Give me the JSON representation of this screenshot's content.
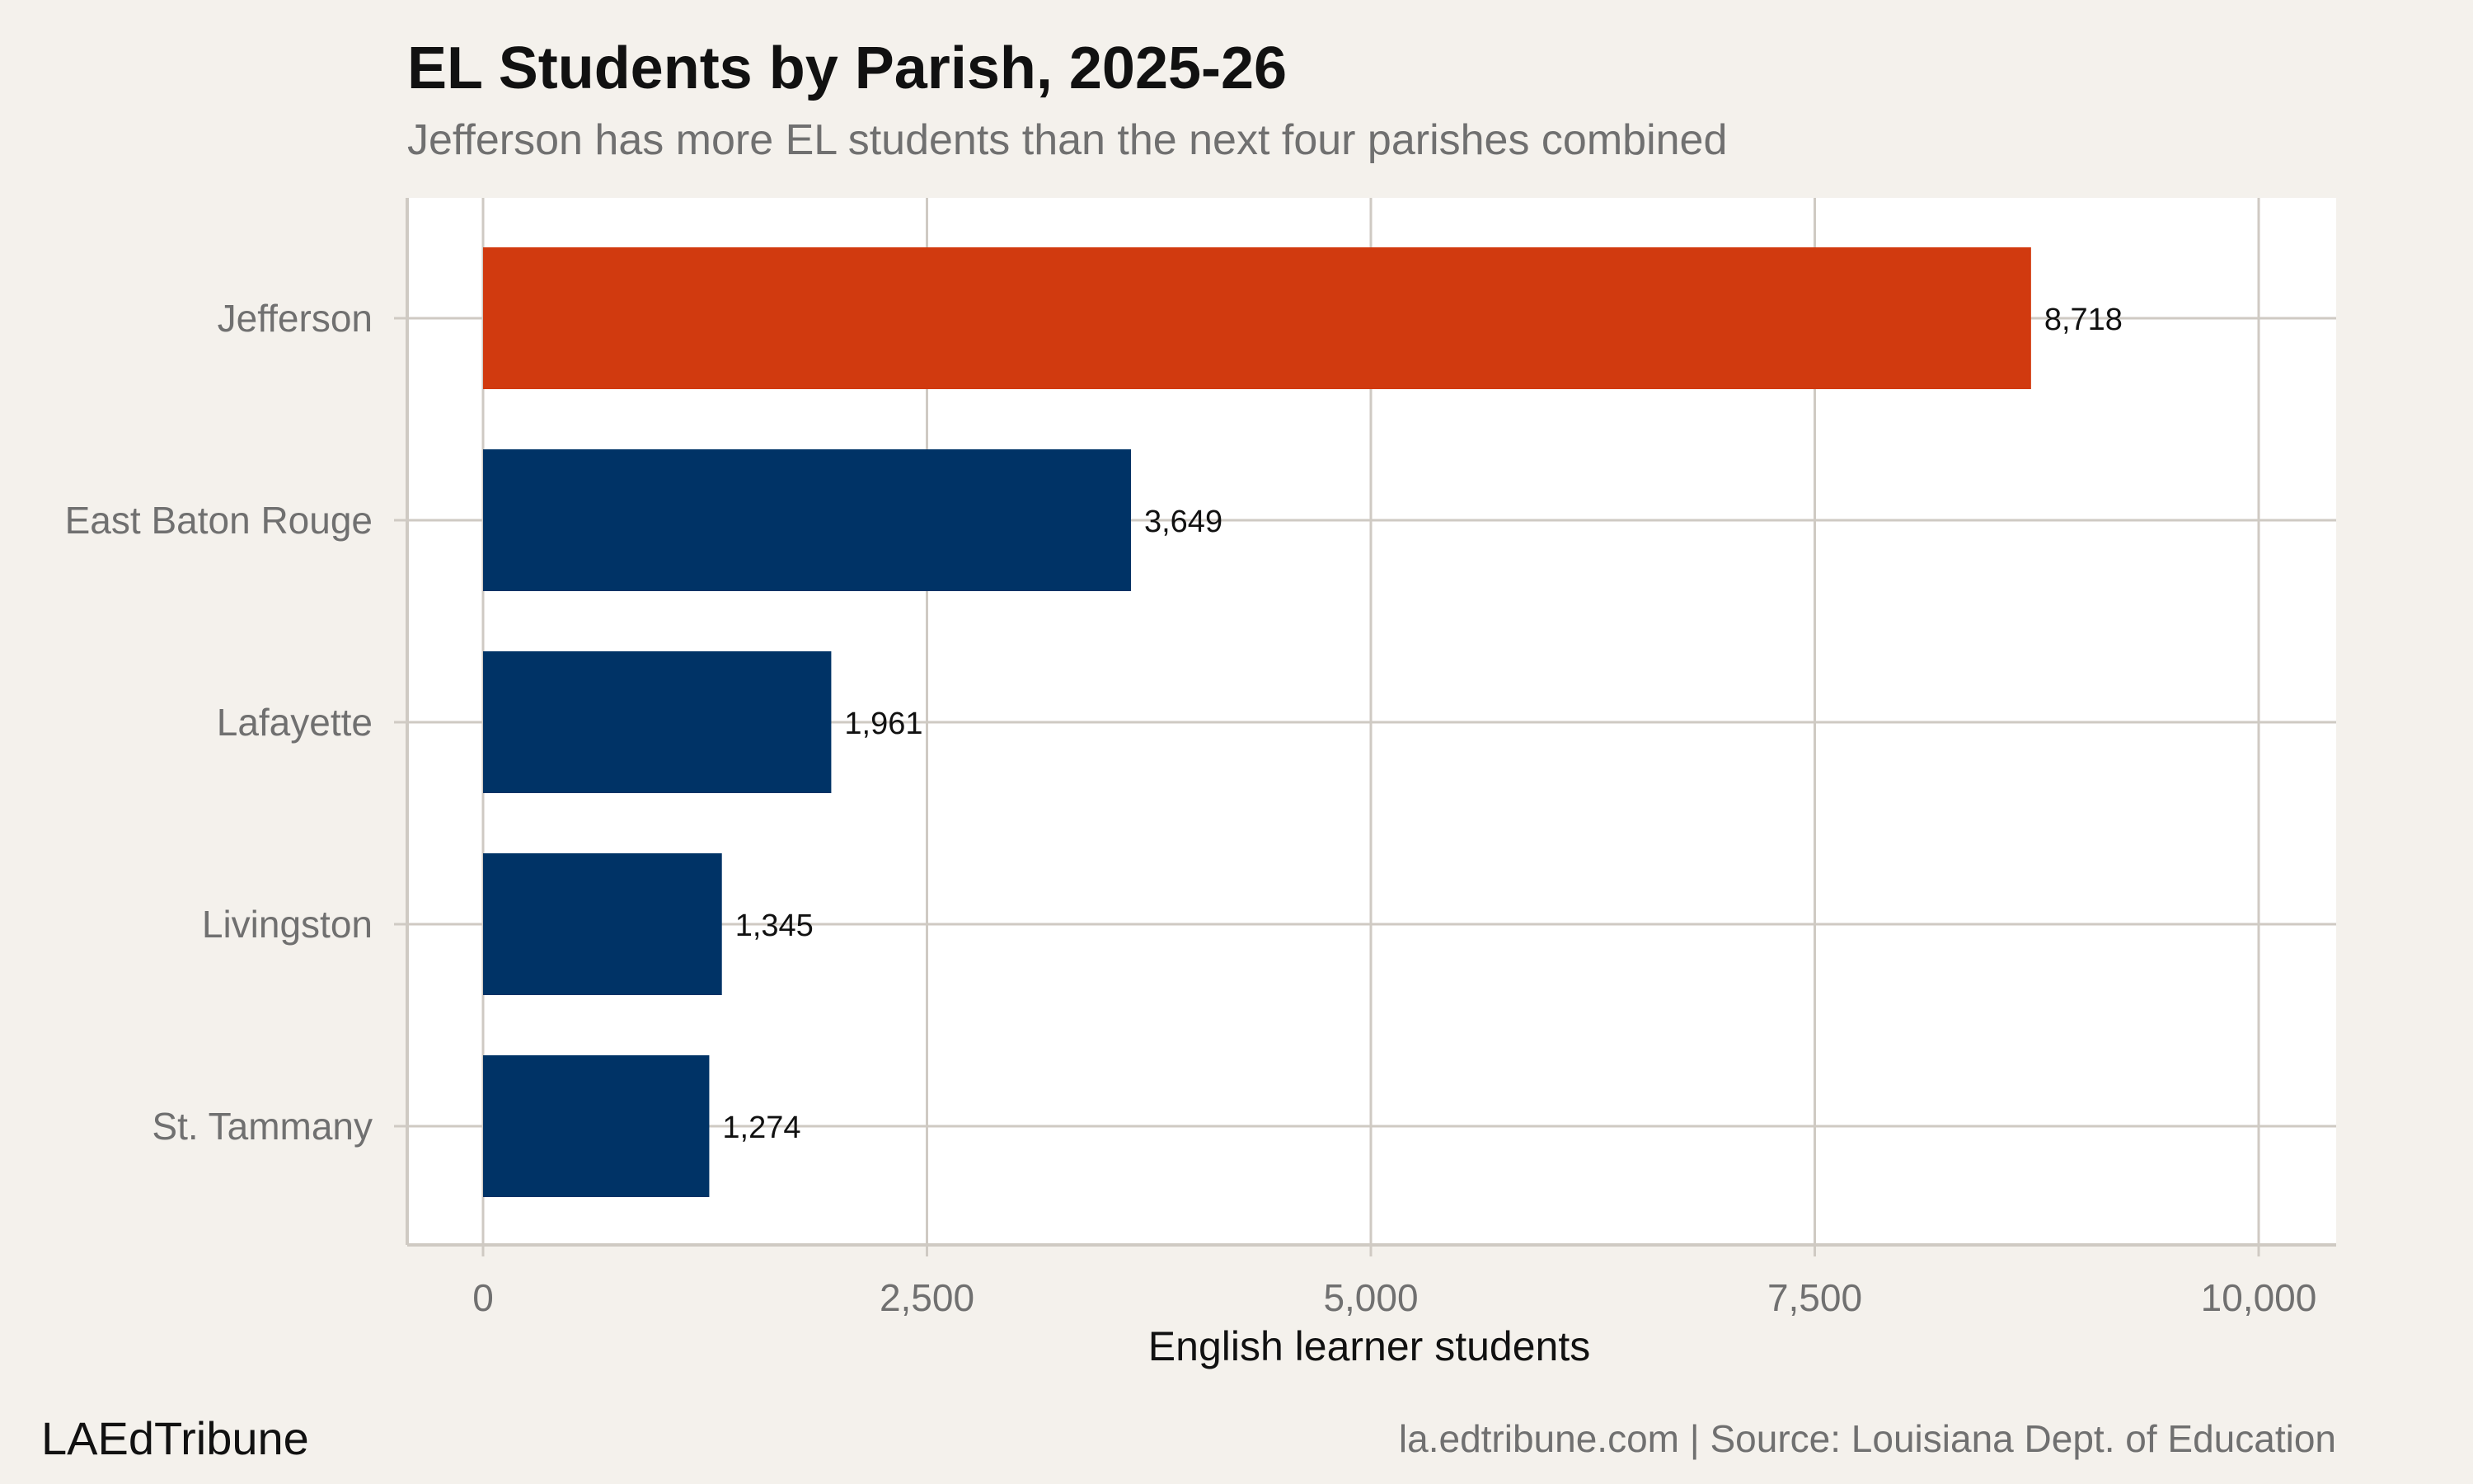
{
  "header": {
    "title": "EL Students by Parish, 2025-26",
    "subtitle": "Jefferson has more EL students than the next four parishes combined"
  },
  "footer": {
    "brand": "LAEdTribune",
    "source": "la.edtribune.com | Source: Louisiana Dept. of Education"
  },
  "colors": {
    "highlight": "#d13a0f",
    "bar": "#003366",
    "background": "#f4f1ec",
    "panel": "#ffffff",
    "grid": "#cfcac3"
  },
  "chart_data": {
    "type": "bar",
    "orientation": "horizontal",
    "title": "EL Students by Parish, 2025-26",
    "subtitle": "Jefferson has more EL students than the next four parishes combined",
    "xlabel": "English learner students",
    "ylabel": "",
    "categories": [
      "Jefferson",
      "East Baton Rouge",
      "Lafayette",
      "Livingston",
      "St. Tammany"
    ],
    "values": [
      8718,
      3649,
      1961,
      1345,
      1274
    ],
    "value_labels": [
      "8,718",
      "3,649",
      "1,961",
      "1,345",
      "1,274"
    ],
    "highlighted_category": "Jefferson",
    "xlim": [
      0,
      10000
    ],
    "xticks": [
      0,
      2500,
      5000,
      7500,
      10000
    ],
    "xtick_labels": [
      "0",
      "2,500",
      "5,000",
      "7,500",
      "10,000"
    ],
    "grid": true,
    "legend": "none"
  }
}
